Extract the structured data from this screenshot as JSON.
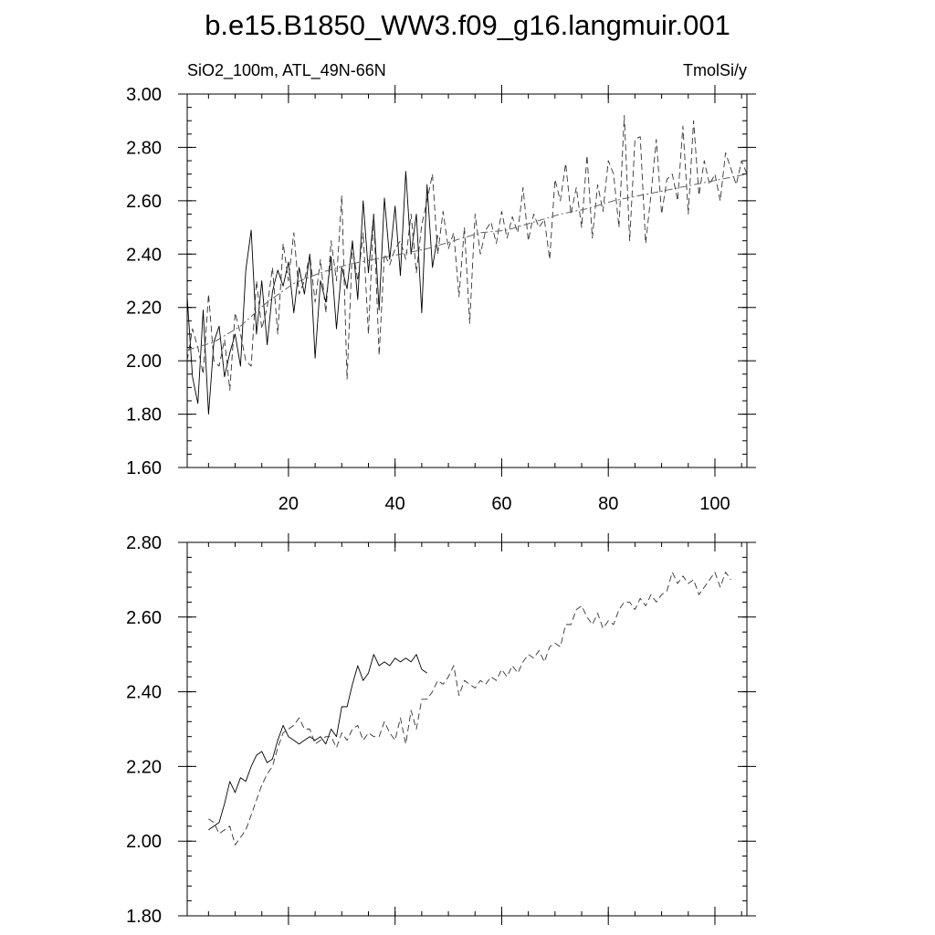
{
  "title": "b.e15.B1850_WW3.f09_g16.langmuir.001",
  "chart_data": [
    {
      "type": "line",
      "left_label": "SiO2_100m, ATL_49N-66N",
      "right_label": "TmolSi/y",
      "xlim": [
        1,
        106
      ],
      "ylim": [
        1.6,
        3.0
      ],
      "xticks": [
        20,
        40,
        60,
        80,
        100
      ],
      "xtick_labels": [
        "20",
        "40",
        "60",
        "80",
        "100"
      ],
      "yticks": [
        1.6,
        1.8,
        2.0,
        2.2,
        2.4,
        2.6,
        2.8,
        3.0
      ],
      "ytick_labels": [
        "1.60",
        "1.80",
        "2.00",
        "2.20",
        "2.40",
        "2.60",
        "2.80",
        "3.00"
      ],
      "grid": false,
      "series": [
        {
          "style": "solid",
          "color": "#000000",
          "x": [
            1,
            2,
            3,
            4,
            5,
            6,
            7,
            8,
            9,
            10,
            11,
            12,
            13,
            14,
            15,
            16,
            17,
            18,
            19,
            20,
            21,
            22,
            23,
            24,
            25,
            26,
            27,
            28,
            29,
            30,
            31,
            32,
            33,
            34,
            35,
            36,
            37,
            38,
            39,
            40,
            41,
            42,
            43,
            44,
            45,
            46,
            47,
            48
          ],
          "y": [
            2.24,
            1.94,
            1.84,
            2.19,
            1.8,
            2.07,
            2.13,
            1.94,
            2.03,
            2.1,
            1.98,
            2.34,
            2.49,
            2.1,
            2.3,
            2.06,
            2.26,
            2.34,
            2.28,
            2.37,
            2.18,
            2.35,
            2.25,
            2.4,
            2.01,
            2.3,
            2.22,
            2.39,
            2.12,
            2.35,
            2.27,
            2.45,
            2.23,
            2.6,
            2.33,
            2.55,
            2.19,
            2.61,
            2.38,
            2.58,
            2.32,
            2.71,
            2.4,
            2.55,
            2.18,
            2.66,
            2.35,
            2.47
          ]
        },
        {
          "style": "dashed",
          "color": "#333333",
          "x": [
            1,
            2,
            3,
            4,
            5,
            6,
            7,
            8,
            9,
            10,
            11,
            12,
            13,
            14,
            15,
            16,
            17,
            18,
            19,
            20,
            21,
            22,
            23,
            24,
            25,
            26,
            27,
            28,
            29,
            30,
            31,
            32,
            33,
            34,
            35,
            36,
            37,
            38,
            39,
            40,
            41,
            42,
            43,
            44,
            45,
            46,
            47,
            48,
            49,
            50,
            51,
            52,
            53,
            54,
            55,
            56,
            57,
            58,
            59,
            60,
            61,
            62,
            63,
            64,
            65,
            66,
            67,
            68,
            69,
            70,
            71,
            72,
            73,
            74,
            75,
            76,
            77,
            78,
            79,
            80,
            81,
            82,
            83,
            84,
            85,
            86,
            87,
            88,
            89,
            90,
            91,
            92,
            93,
            94,
            95,
            96,
            97,
            98,
            99,
            100,
            101,
            102,
            103,
            104,
            105,
            106
          ],
          "y": [
            2.0,
            2.12,
            2.05,
            1.95,
            2.25,
            2.0,
            1.98,
            2.08,
            1.89,
            2.18,
            2.1,
            2.0,
            1.98,
            2.3,
            2.12,
            2.2,
            2.35,
            2.1,
            2.44,
            2.3,
            2.48,
            2.25,
            2.3,
            2.4,
            2.22,
            2.38,
            2.18,
            2.45,
            2.3,
            2.62,
            1.93,
            2.43,
            2.3,
            2.48,
            2.1,
            2.55,
            2.02,
            2.4,
            2.36,
            2.42,
            2.45,
            2.38,
            2.55,
            2.33,
            2.51,
            2.6,
            2.7,
            2.4,
            2.56,
            2.42,
            2.48,
            2.24,
            2.5,
            2.14,
            2.55,
            2.4,
            2.49,
            2.52,
            2.44,
            2.56,
            2.46,
            2.54,
            2.48,
            2.65,
            2.45,
            2.55,
            2.5,
            2.53,
            2.38,
            2.68,
            2.6,
            2.74,
            2.55,
            2.65,
            2.5,
            2.77,
            2.46,
            2.66,
            2.56,
            2.75,
            2.7,
            2.5,
            2.92,
            2.45,
            2.83,
            2.84,
            2.44,
            2.62,
            2.83,
            2.55,
            2.68,
            2.7,
            2.6,
            2.88,
            2.55,
            2.9,
            2.62,
            2.75,
            2.66,
            2.7,
            2.6,
            2.78,
            2.72,
            2.66,
            2.75,
            2.7
          ]
        },
        {
          "style": "dashdot",
          "color": "#555555",
          "x": [
            1,
            6,
            11,
            16,
            21,
            26,
            31,
            36,
            41,
            46,
            51,
            56,
            61,
            66,
            71,
            76,
            81,
            86,
            91,
            96,
            101,
            106
          ],
          "y": [
            2.04,
            2.07,
            2.13,
            2.22,
            2.29,
            2.33,
            2.36,
            2.38,
            2.4,
            2.42,
            2.45,
            2.48,
            2.49,
            2.52,
            2.55,
            2.57,
            2.6,
            2.62,
            2.64,
            2.66,
            2.68,
            2.7
          ]
        }
      ]
    },
    {
      "type": "line",
      "xlim": [
        1,
        106
      ],
      "ylim": [
        1.8,
        2.8
      ],
      "xticks": [
        20,
        40,
        60,
        80,
        100
      ],
      "yticks": [
        1.8,
        2.0,
        2.2,
        2.4,
        2.6,
        2.8
      ],
      "ytick_labels": [
        "1.80",
        "2.00",
        "2.20",
        "2.40",
        "2.60",
        "2.80"
      ],
      "grid": false,
      "series": [
        {
          "style": "solid",
          "color": "#000000",
          "x": [
            5,
            6,
            7,
            8,
            9,
            10,
            11,
            12,
            13,
            14,
            15,
            16,
            17,
            18,
            19,
            20,
            21,
            22,
            23,
            24,
            25,
            26,
            27,
            28,
            29,
            30,
            31,
            32,
            33,
            34,
            35,
            36,
            37,
            38,
            39,
            40,
            41,
            42,
            43,
            44,
            45,
            46
          ],
          "y": [
            2.03,
            2.04,
            2.05,
            2.1,
            2.16,
            2.13,
            2.17,
            2.16,
            2.2,
            2.23,
            2.24,
            2.21,
            2.22,
            2.27,
            2.31,
            2.28,
            2.27,
            2.26,
            2.27,
            2.28,
            2.27,
            2.28,
            2.26,
            2.3,
            2.28,
            2.36,
            2.36,
            2.42,
            2.47,
            2.43,
            2.45,
            2.5,
            2.47,
            2.48,
            2.47,
            2.49,
            2.48,
            2.49,
            2.48,
            2.5,
            2.46,
            2.45
          ]
        },
        {
          "style": "dashed",
          "color": "#333333",
          "x": [
            5,
            6,
            7,
            8,
            9,
            10,
            11,
            12,
            13,
            14,
            15,
            16,
            17,
            18,
            19,
            20,
            21,
            22,
            23,
            24,
            25,
            26,
            27,
            28,
            29,
            30,
            31,
            32,
            33,
            34,
            35,
            36,
            37,
            38,
            39,
            40,
            41,
            42,
            43,
            44,
            45,
            46,
            47,
            48,
            49,
            50,
            51,
            52,
            53,
            54,
            55,
            56,
            57,
            58,
            59,
            60,
            61,
            62,
            63,
            64,
            65,
            66,
            67,
            68,
            69,
            70,
            71,
            72,
            73,
            74,
            75,
            76,
            77,
            78,
            79,
            80,
            81,
            82,
            83,
            84,
            85,
            86,
            87,
            88,
            89,
            90,
            91,
            92,
            93,
            94,
            95,
            96,
            97,
            98,
            99,
            100,
            101,
            102,
            103
          ],
          "y": [
            2.06,
            2.05,
            2.02,
            2.03,
            2.04,
            1.99,
            2.01,
            2.03,
            2.07,
            2.11,
            2.15,
            2.18,
            2.2,
            2.25,
            2.29,
            2.3,
            2.31,
            2.33,
            2.3,
            2.3,
            2.26,
            2.27,
            2.28,
            2.28,
            2.25,
            2.29,
            2.27,
            2.3,
            2.31,
            2.27,
            2.29,
            2.28,
            2.28,
            2.32,
            2.29,
            2.27,
            2.33,
            2.26,
            2.35,
            2.3,
            2.38,
            2.38,
            2.4,
            2.43,
            2.42,
            2.44,
            2.47,
            2.39,
            2.43,
            2.42,
            2.41,
            2.43,
            2.42,
            2.44,
            2.43,
            2.46,
            2.44,
            2.47,
            2.45,
            2.48,
            2.5,
            2.49,
            2.51,
            2.48,
            2.52,
            2.53,
            2.52,
            2.58,
            2.58,
            2.62,
            2.63,
            2.6,
            2.58,
            2.61,
            2.57,
            2.59,
            2.58,
            2.62,
            2.64,
            2.64,
            2.62,
            2.65,
            2.63,
            2.66,
            2.64,
            2.66,
            2.67,
            2.72,
            2.69,
            2.71,
            2.69,
            2.7,
            2.66,
            2.68,
            2.7,
            2.72,
            2.68,
            2.72,
            2.7
          ]
        }
      ]
    }
  ]
}
